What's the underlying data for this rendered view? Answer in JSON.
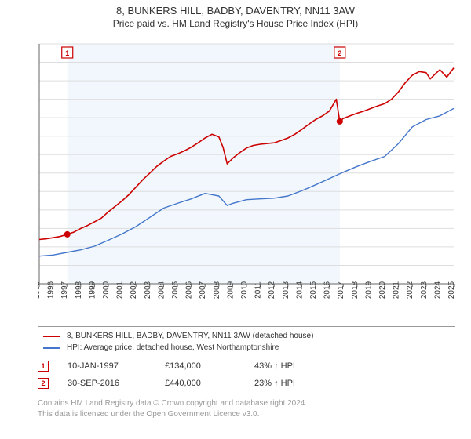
{
  "title": {
    "line1": "8, BUNKERS HILL, BADBY, DAVENTRY, NN11 3AW",
    "line2": "Price paid vs. HM Land Registry's House Price Index (HPI)"
  },
  "chart": {
    "type": "line",
    "background_color": "#ffffff",
    "plot_shade_color": "#f1f7fc",
    "plot_shade_x_start": 1997.03,
    "plot_shade_x_end": 2016.75,
    "grid_color": "#dddddd",
    "axis_color": "#666666",
    "xlim": [
      1995,
      2025
    ],
    "ylim": [
      0,
      650000
    ],
    "ytick_step": 50000,
    "ytick_prefix": "£",
    "ytick_suffix": "K",
    "ytick_divisor": 1000,
    "x_ticks": [
      1995,
      1996,
      1997,
      1998,
      1999,
      2000,
      2001,
      2002,
      2003,
      2004,
      2005,
      2006,
      2007,
      2008,
      2009,
      2010,
      2011,
      2012,
      2013,
      2014,
      2015,
      2016,
      2017,
      2018,
      2019,
      2020,
      2021,
      2022,
      2023,
      2024,
      2025
    ],
    "title_fontsize": 13,
    "subtitle_fontsize": 12,
    "label_fontsize": 10,
    "series": [
      {
        "id": "property",
        "label": "8, BUNKERS HILL, BADBY, DAVENTRY, NN11 3AW (detached house)",
        "color": "#cc0000",
        "line_width": 1.6,
        "data": [
          [
            1995,
            120000
          ],
          [
            1995.5,
            122000
          ],
          [
            1996,
            125000
          ],
          [
            1996.5,
            128000
          ],
          [
            1997.03,
            134000
          ],
          [
            1997.5,
            140000
          ],
          [
            1998,
            150000
          ],
          [
            1998.5,
            158000
          ],
          [
            1999,
            168000
          ],
          [
            1999.5,
            178000
          ],
          [
            2000,
            195000
          ],
          [
            2000.5,
            210000
          ],
          [
            2001,
            225000
          ],
          [
            2001.5,
            242000
          ],
          [
            2002,
            262000
          ],
          [
            2002.5,
            282000
          ],
          [
            2003,
            300000
          ],
          [
            2003.5,
            318000
          ],
          [
            2004,
            332000
          ],
          [
            2004.5,
            345000
          ],
          [
            2005,
            352000
          ],
          [
            2005.5,
            360000
          ],
          [
            2006,
            370000
          ],
          [
            2006.5,
            382000
          ],
          [
            2007,
            395000
          ],
          [
            2007.5,
            405000
          ],
          [
            2008,
            398000
          ],
          [
            2008.3,
            370000
          ],
          [
            2008.6,
            325000
          ],
          [
            2009,
            340000
          ],
          [
            2009.5,
            355000
          ],
          [
            2010,
            368000
          ],
          [
            2010.5,
            375000
          ],
          [
            2011,
            378000
          ],
          [
            2011.5,
            380000
          ],
          [
            2012,
            382000
          ],
          [
            2012.5,
            388000
          ],
          [
            2013,
            395000
          ],
          [
            2013.5,
            405000
          ],
          [
            2014,
            418000
          ],
          [
            2014.5,
            432000
          ],
          [
            2015,
            445000
          ],
          [
            2015.5,
            455000
          ],
          [
            2016,
            468000
          ],
          [
            2016.5,
            500000
          ],
          [
            2016.75,
            440000
          ],
          [
            2017,
            448000
          ],
          [
            2017.5,
            455000
          ],
          [
            2018,
            462000
          ],
          [
            2018.5,
            468000
          ],
          [
            2019,
            475000
          ],
          [
            2019.5,
            482000
          ],
          [
            2020,
            488000
          ],
          [
            2020.5,
            500000
          ],
          [
            2021,
            520000
          ],
          [
            2021.5,
            545000
          ],
          [
            2022,
            565000
          ],
          [
            2022.5,
            575000
          ],
          [
            2023,
            572000
          ],
          [
            2023.3,
            555000
          ],
          [
            2023.7,
            570000
          ],
          [
            2024,
            580000
          ],
          [
            2024.5,
            560000
          ],
          [
            2025,
            585000
          ]
        ]
      },
      {
        "id": "hpi",
        "label": "HPI: Average price, detached house, West Northamptonshire",
        "color": "#4477cc",
        "line_width": 1.4,
        "data": [
          [
            1995,
            75000
          ],
          [
            1996,
            78000
          ],
          [
            1997,
            85000
          ],
          [
            1998,
            92000
          ],
          [
            1999,
            102000
          ],
          [
            2000,
            118000
          ],
          [
            2001,
            135000
          ],
          [
            2002,
            155000
          ],
          [
            2003,
            180000
          ],
          [
            2004,
            205000
          ],
          [
            2005,
            218000
          ],
          [
            2006,
            230000
          ],
          [
            2007,
            245000
          ],
          [
            2008,
            238000
          ],
          [
            2008.6,
            212000
          ],
          [
            2009,
            218000
          ],
          [
            2010,
            228000
          ],
          [
            2011,
            230000
          ],
          [
            2012,
            232000
          ],
          [
            2013,
            238000
          ],
          [
            2014,
            252000
          ],
          [
            2015,
            268000
          ],
          [
            2016,
            285000
          ],
          [
            2017,
            302000
          ],
          [
            2018,
            318000
          ],
          [
            2019,
            332000
          ],
          [
            2020,
            345000
          ],
          [
            2021,
            380000
          ],
          [
            2022,
            425000
          ],
          [
            2023,
            445000
          ],
          [
            2024,
            455000
          ],
          [
            2025,
            475000
          ]
        ]
      }
    ],
    "markers": [
      {
        "num": "1",
        "x": 1997.03,
        "y": 134000,
        "color": "#cc0000"
      },
      {
        "num": "2",
        "x": 2016.75,
        "y": 440000,
        "color": "#cc0000"
      }
    ],
    "marker_dot_color": "#cc0000",
    "marker_dot_radius": 4,
    "marker_box_size": 14,
    "marker_box_fill": "#ffffff"
  },
  "legend": {
    "items": [
      {
        "color": "#cc0000",
        "label": "8, BUNKERS HILL, BADBY, DAVENTRY, NN11 3AW (detached house)"
      },
      {
        "color": "#4477cc",
        "label": "HPI: Average price, detached house, West Northamptonshire"
      }
    ]
  },
  "marker_rows": [
    {
      "num": "1",
      "color": "#cc0000",
      "date": "10-JAN-1997",
      "price": "£134,000",
      "hpi": "43% ↑ HPI"
    },
    {
      "num": "2",
      "color": "#cc0000",
      "date": "30-SEP-2016",
      "price": "£440,000",
      "hpi": "23% ↑ HPI"
    }
  ],
  "footer": {
    "line1": "Contains HM Land Registry data © Crown copyright and database right 2024.",
    "line2": "This data is licensed under the Open Government Licence v3.0."
  }
}
